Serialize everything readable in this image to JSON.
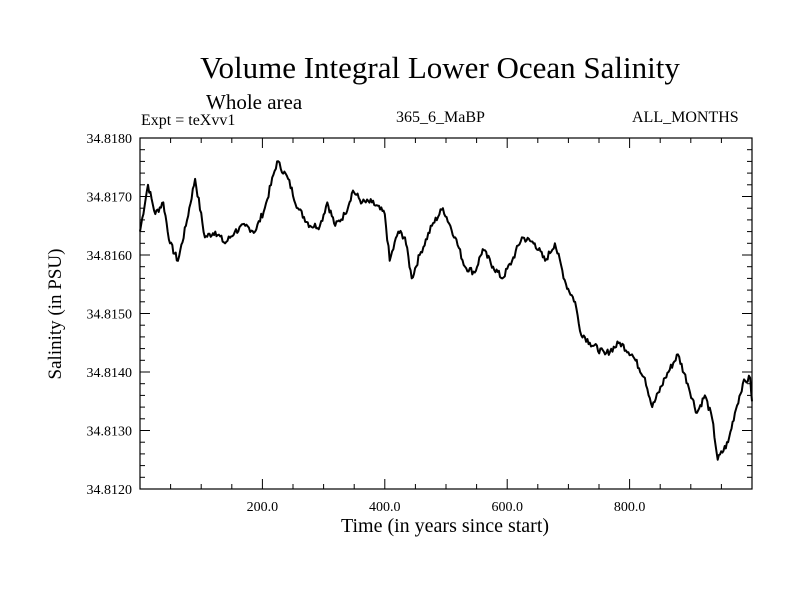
{
  "chart_data": {
    "type": "line",
    "title": "Volume Integral Lower Ocean Salinity",
    "subtitle": "Whole area",
    "annotations": {
      "left": "Expt = teXvv1",
      "center": "365_6_MaBP",
      "right": "ALL_MONTHS"
    },
    "xlabel": "Time (in years since start)",
    "ylabel": "Salinity (in PSU)",
    "xlim": [
      0,
      1000
    ],
    "ylim": [
      34.812,
      34.818
    ],
    "x_ticks": [
      200,
      400,
      600,
      800
    ],
    "x_tick_labels": [
      "200.0",
      "400.0",
      "600.0",
      "800.0"
    ],
    "x_minor_step": 50,
    "y_ticks": [
      34.812,
      34.813,
      34.814,
      34.815,
      34.816,
      34.817,
      34.818
    ],
    "y_tick_labels": [
      "34.8120",
      "34.8130",
      "34.8140",
      "34.8150",
      "34.8160",
      "34.8170",
      "34.8180"
    ],
    "y_minor_step": 0.0002,
    "grid": false,
    "legend": "none",
    "series": [
      {
        "name": "Salinity",
        "color": "#000000",
        "x": [
          0,
          13,
          25,
          38,
          49,
          62,
          75,
          90,
          106,
          123,
          139,
          155,
          172,
          188,
          204,
          224,
          242,
          258,
          278,
          294,
          306,
          319,
          335,
          348,
          363,
          379,
          400,
          408,
          422,
          433,
          444,
          457,
          477,
          495,
          515,
          531,
          547,
          560,
          577,
          592,
          608,
          624,
          645,
          662,
          678,
          696,
          711,
          719,
          735,
          760,
          784,
          804,
          825,
          837,
          858,
          879,
          895,
          910,
          923,
          935,
          944,
          961,
          972,
          985,
          997,
          1000
        ],
        "y": [
          34.8164,
          34.8172,
          34.8167,
          34.8169,
          34.8162,
          34.8159,
          34.8165,
          34.8173,
          34.8163,
          34.8164,
          34.8162,
          34.8164,
          34.8165,
          34.8164,
          34.8168,
          34.8176,
          34.8173,
          34.8168,
          34.8165,
          34.8165,
          34.8169,
          34.8165,
          34.8167,
          34.8171,
          34.8169,
          34.8169,
          34.8167,
          34.8159,
          34.8164,
          34.8163,
          34.8156,
          34.816,
          34.8165,
          34.8168,
          34.8163,
          34.8158,
          34.8157,
          34.8161,
          34.8158,
          34.8156,
          34.8159,
          34.8163,
          34.8162,
          34.8159,
          34.8162,
          34.8155,
          34.8152,
          34.8147,
          34.8145,
          34.8143,
          34.8145,
          34.8143,
          34.8139,
          34.8134,
          34.8139,
          34.8143,
          34.8138,
          34.8133,
          34.8136,
          34.8132,
          34.8125,
          34.8128,
          34.8133,
          34.8138,
          34.8139,
          34.8135
        ]
      }
    ]
  }
}
